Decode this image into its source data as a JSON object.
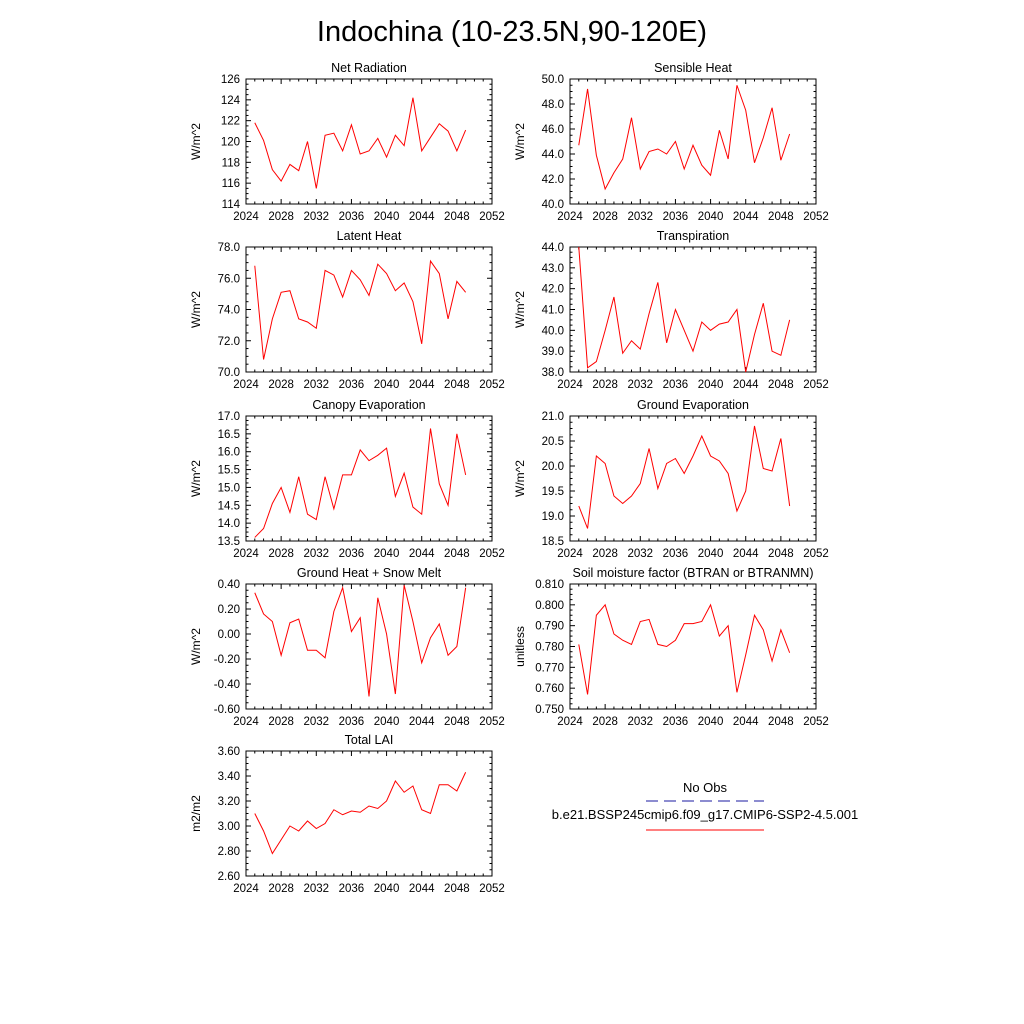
{
  "title": "Indochina (10-23.5N,90-120E)",
  "legend": {
    "entries": [
      {
        "label": "No Obs",
        "color": "#1a1aa0",
        "style": "dashed"
      },
      {
        "label": "b.e21.BSSP245cmip6.f09_g17.CMIP6-SSP2-4.5.001",
        "color": "#ff0000",
        "style": "solid"
      }
    ]
  },
  "chart_data": [
    {
      "type": "line",
      "title": "Net Radiation",
      "ylabel": "W/m^2",
      "xlim": [
        2024,
        2052
      ],
      "xticks": [
        "2024",
        "2028",
        "2032",
        "2036",
        "2040",
        "2044",
        "2048",
        "2052"
      ],
      "ylim": [
        114,
        126
      ],
      "yticks": [
        "114",
        "116",
        "118",
        "120",
        "122",
        "124",
        "126"
      ],
      "x": [
        2025,
        2026,
        2027,
        2028,
        2029,
        2030,
        2031,
        2032,
        2033,
        2034,
        2035,
        2036,
        2037,
        2038,
        2039,
        2040,
        2041,
        2042,
        2043,
        2044,
        2045,
        2046,
        2047,
        2048,
        2049
      ],
      "series": [
        {
          "color": "#ff0000",
          "values": [
            121.8,
            120.1,
            117.3,
            116.2,
            117.8,
            117.2,
            120.0,
            115.5,
            120.6,
            120.8,
            119.1,
            121.6,
            118.8,
            119.1,
            120.3,
            118.5,
            120.6,
            119.6,
            124.2,
            119.1,
            120.4,
            121.7,
            121.0,
            119.1,
            121.1
          ]
        }
      ]
    },
    {
      "type": "line",
      "title": "Sensible Heat",
      "ylabel": "W/m^2",
      "xlim": [
        2024,
        2052
      ],
      "xticks": [
        "2024",
        "2028",
        "2032",
        "2036",
        "2040",
        "2044",
        "2048",
        "2052"
      ],
      "ylim": [
        40.0,
        50.0
      ],
      "yticks": [
        "40.0",
        "42.0",
        "44.0",
        "46.0",
        "48.0",
        "50.0"
      ],
      "x": [
        2025,
        2026,
        2027,
        2028,
        2029,
        2030,
        2031,
        2032,
        2033,
        2034,
        2035,
        2036,
        2037,
        2038,
        2039,
        2040,
        2041,
        2042,
        2043,
        2044,
        2045,
        2046,
        2047,
        2048,
        2049
      ],
      "series": [
        {
          "color": "#ff0000",
          "values": [
            44.7,
            49.2,
            43.9,
            41.2,
            42.5,
            43.6,
            46.9,
            42.8,
            44.2,
            44.4,
            44.0,
            45.0,
            42.8,
            44.7,
            43.1,
            42.3,
            45.9,
            43.6,
            49.5,
            47.5,
            43.3,
            45.3,
            47.7,
            43.5,
            45.6
          ]
        }
      ]
    },
    {
      "type": "line",
      "title": "Latent Heat",
      "ylabel": "W/m^2",
      "xlim": [
        2024,
        2052
      ],
      "xticks": [
        "2024",
        "2028",
        "2032",
        "2036",
        "2040",
        "2044",
        "2048",
        "2052"
      ],
      "ylim": [
        70.0,
        78.0
      ],
      "yticks": [
        "70.0",
        "72.0",
        "74.0",
        "76.0",
        "78.0"
      ],
      "x": [
        2025,
        2026,
        2027,
        2028,
        2029,
        2030,
        2031,
        2032,
        2033,
        2034,
        2035,
        2036,
        2037,
        2038,
        2039,
        2040,
        2041,
        2042,
        2043,
        2044,
        2045,
        2046,
        2047,
        2048,
        2049
      ],
      "series": [
        {
          "color": "#ff0000",
          "values": [
            76.8,
            70.8,
            73.4,
            75.1,
            75.2,
            73.4,
            73.2,
            72.8,
            76.5,
            76.2,
            74.8,
            76.5,
            75.9,
            74.9,
            76.9,
            76.3,
            75.2,
            75.7,
            74.5,
            71.8,
            77.1,
            76.3,
            73.4,
            75.8,
            75.1
          ]
        }
      ]
    },
    {
      "type": "line",
      "title": "Transpiration",
      "ylabel": "W/m^2",
      "xlim": [
        2024,
        2052
      ],
      "xticks": [
        "2024",
        "2028",
        "2032",
        "2036",
        "2040",
        "2044",
        "2048",
        "2052"
      ],
      "ylim": [
        38.0,
        44.0
      ],
      "yticks": [
        "38.0",
        "39.0",
        "40.0",
        "41.0",
        "42.0",
        "43.0",
        "44.0"
      ],
      "x": [
        2025,
        2026,
        2027,
        2028,
        2029,
        2030,
        2031,
        2032,
        2033,
        2034,
        2035,
        2036,
        2037,
        2038,
        2039,
        2040,
        2041,
        2042,
        2043,
        2044,
        2045,
        2046,
        2047,
        2048,
        2049
      ],
      "series": [
        {
          "color": "#ff0000",
          "values": [
            44.0,
            38.2,
            38.5,
            40.0,
            41.6,
            38.9,
            39.5,
            39.1,
            40.8,
            42.3,
            39.4,
            41.0,
            40.0,
            39.0,
            40.4,
            40.0,
            40.3,
            40.4,
            41.0,
            38.0,
            39.8,
            41.3,
            39.0,
            38.8,
            40.5
          ]
        }
      ]
    },
    {
      "type": "line",
      "title": "Canopy Evaporation",
      "ylabel": "W/m^2",
      "xlim": [
        2024,
        2052
      ],
      "xticks": [
        "2024",
        "2028",
        "2032",
        "2036",
        "2040",
        "2044",
        "2048",
        "2052"
      ],
      "ylim": [
        13.5,
        17.0
      ],
      "yticks": [
        "13.5",
        "14.0",
        "14.5",
        "15.0",
        "15.5",
        "16.0",
        "16.5",
        "17.0"
      ],
      "x": [
        2025,
        2026,
        2027,
        2028,
        2029,
        2030,
        2031,
        2032,
        2033,
        2034,
        2035,
        2036,
        2037,
        2038,
        2039,
        2040,
        2041,
        2042,
        2043,
        2044,
        2045,
        2046,
        2047,
        2048,
        2049
      ],
      "series": [
        {
          "color": "#ff0000",
          "values": [
            13.6,
            13.85,
            14.55,
            15.0,
            14.3,
            15.3,
            14.25,
            14.1,
            15.3,
            14.4,
            15.35,
            15.35,
            16.05,
            15.75,
            15.9,
            16.1,
            14.75,
            15.4,
            14.45,
            14.25,
            16.65,
            15.1,
            14.5,
            16.5,
            15.35
          ]
        }
      ]
    },
    {
      "type": "line",
      "title": "Ground Evaporation",
      "ylabel": "W/m^2",
      "xlim": [
        2024,
        2052
      ],
      "xticks": [
        "2024",
        "2028",
        "2032",
        "2036",
        "2040",
        "2044",
        "2048",
        "2052"
      ],
      "ylim": [
        18.5,
        21.0
      ],
      "yticks": [
        "18.5",
        "19.0",
        "19.5",
        "20.0",
        "20.5",
        "21.0"
      ],
      "x": [
        2025,
        2026,
        2027,
        2028,
        2029,
        2030,
        2031,
        2032,
        2033,
        2034,
        2035,
        2036,
        2037,
        2038,
        2039,
        2040,
        2041,
        2042,
        2043,
        2044,
        2045,
        2046,
        2047,
        2048,
        2049
      ],
      "series": [
        {
          "color": "#ff0000",
          "values": [
            19.2,
            18.75,
            20.2,
            20.05,
            19.4,
            19.25,
            19.4,
            19.65,
            20.35,
            19.55,
            20.05,
            20.15,
            19.85,
            20.2,
            20.6,
            20.2,
            20.1,
            19.85,
            19.1,
            19.5,
            20.8,
            19.95,
            19.9,
            20.55,
            19.2
          ]
        }
      ]
    },
    {
      "type": "line",
      "title": "Ground Heat + Snow Melt",
      "ylabel": "W/m^2",
      "xlim": [
        2024,
        2052
      ],
      "xticks": [
        "2024",
        "2028",
        "2032",
        "2036",
        "2040",
        "2044",
        "2048",
        "2052"
      ],
      "ylim": [
        -0.6,
        0.4
      ],
      "yticks": [
        "-0.60",
        "-0.40",
        "-0.20",
        "0.00",
        "0.20",
        "0.40"
      ],
      "x": [
        2025,
        2026,
        2027,
        2028,
        2029,
        2030,
        2031,
        2032,
        2033,
        2034,
        2035,
        2036,
        2037,
        2038,
        2039,
        2040,
        2041,
        2042,
        2043,
        2044,
        2045,
        2046,
        2047,
        2048,
        2049
      ],
      "series": [
        {
          "color": "#ff0000",
          "values": [
            0.33,
            0.16,
            0.1,
            -0.17,
            0.09,
            0.12,
            -0.13,
            -0.13,
            -0.19,
            0.18,
            0.37,
            0.02,
            0.13,
            -0.5,
            0.29,
            0.0,
            -0.48,
            0.39,
            0.1,
            -0.23,
            -0.03,
            0.08,
            -0.17,
            -0.1,
            0.37
          ]
        }
      ]
    },
    {
      "type": "line",
      "title": "Soil moisture factor (BTRAN or BTRANMN)",
      "ylabel": "unitless",
      "xlim": [
        2024,
        2052
      ],
      "xticks": [
        "2024",
        "2028",
        "2032",
        "2036",
        "2040",
        "2044",
        "2048",
        "2052"
      ],
      "ylim": [
        0.75,
        0.81
      ],
      "yticks": [
        "0.750",
        "0.760",
        "0.770",
        "0.780",
        "0.790",
        "0.800",
        "0.810"
      ],
      "x": [
        2025,
        2026,
        2027,
        2028,
        2029,
        2030,
        2031,
        2032,
        2033,
        2034,
        2035,
        2036,
        2037,
        2038,
        2039,
        2040,
        2041,
        2042,
        2043,
        2044,
        2045,
        2046,
        2047,
        2048,
        2049
      ],
      "series": [
        {
          "color": "#ff0000",
          "values": [
            0.781,
            0.757,
            0.795,
            0.8,
            0.786,
            0.783,
            0.781,
            0.792,
            0.793,
            0.781,
            0.78,
            0.783,
            0.791,
            0.791,
            0.792,
            0.8,
            0.785,
            0.79,
            0.758,
            0.776,
            0.795,
            0.788,
            0.773,
            0.788,
            0.777
          ]
        }
      ]
    },
    {
      "type": "line",
      "title": "Total LAI",
      "ylabel": "m2/m2",
      "xlim": [
        2024,
        2052
      ],
      "xticks": [
        "2024",
        "2028",
        "2032",
        "2036",
        "2040",
        "2044",
        "2048",
        "2052"
      ],
      "ylim": [
        2.6,
        3.6
      ],
      "yticks": [
        "2.60",
        "2.80",
        "3.00",
        "3.20",
        "3.40",
        "3.60"
      ],
      "x": [
        2025,
        2026,
        2027,
        2028,
        2029,
        2030,
        2031,
        2032,
        2033,
        2034,
        2035,
        2036,
        2037,
        2038,
        2039,
        2040,
        2041,
        2042,
        2043,
        2044,
        2045,
        2046,
        2047,
        2048,
        2049
      ],
      "series": [
        {
          "color": "#ff0000",
          "values": [
            3.1,
            2.96,
            2.78,
            2.89,
            3.0,
            2.96,
            3.04,
            2.98,
            3.02,
            3.13,
            3.09,
            3.12,
            3.11,
            3.16,
            3.14,
            3.2,
            3.36,
            3.27,
            3.32,
            3.13,
            3.1,
            3.33,
            3.33,
            3.28,
            3.43
          ]
        }
      ]
    }
  ]
}
